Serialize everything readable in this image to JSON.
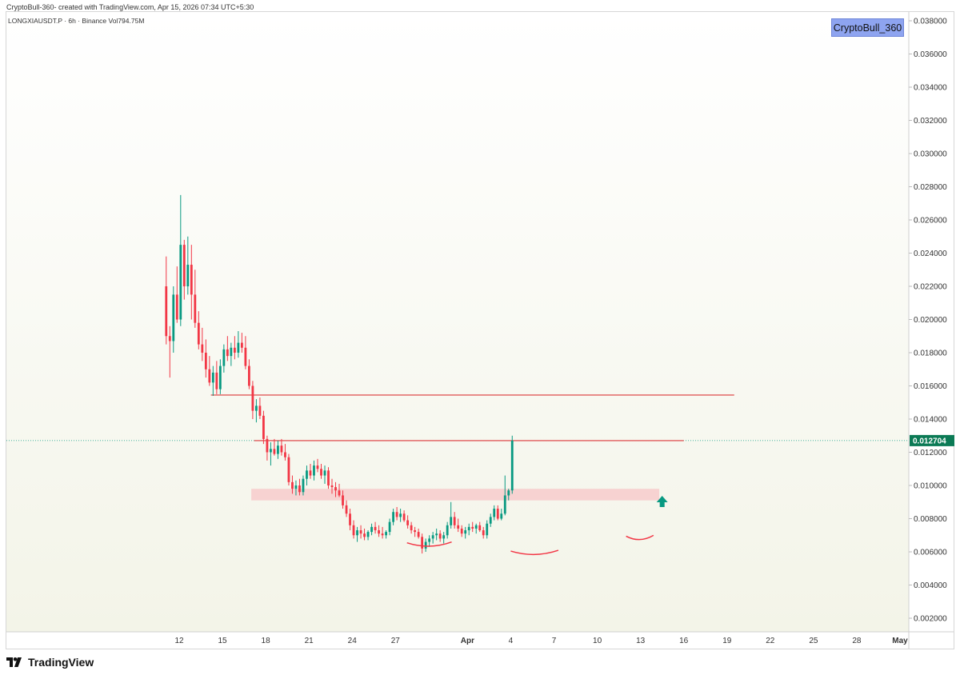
{
  "header": {
    "attribution": "CryptoBull-360- created with TradingView.com, Apr 15, 2026 07:34 UTC+5:30",
    "symbol_line": "LONGXIAUSDT.P · 6h · Binance  Vol794.75M",
    "watermark": "CryptoBull_360"
  },
  "footer": {
    "brand": "TradingView"
  },
  "colors": {
    "up": "#089981",
    "down": "#f23645",
    "level_line": "#e05a5a",
    "zone_fill": "#f7c9c9",
    "price_tag": "#0b7a55",
    "bg_top": "#ffffff",
    "bg_bottom": "#f3f4e8"
  },
  "chart_data": {
    "type": "candlestick",
    "symbol": "LONGXIAUSDT.P",
    "timeframe": "6h",
    "exchange": "Binance",
    "ylim": [
      0.001,
      0.0385
    ],
    "y_ticks": [
      "0.002000",
      "0.004000",
      "0.006000",
      "0.008000",
      "0.010000",
      "0.012000",
      "0.014000",
      "0.016000",
      "0.018000",
      "0.020000",
      "0.022000",
      "0.024000",
      "0.026000",
      "0.028000",
      "0.030000",
      "0.032000",
      "0.034000",
      "0.036000",
      "0.038000"
    ],
    "x_ticks": [
      {
        "label": "12",
        "day": 12
      },
      {
        "label": "15",
        "day": 15
      },
      {
        "label": "18",
        "day": 18
      },
      {
        "label": "21",
        "day": 21
      },
      {
        "label": "24",
        "day": 24
      },
      {
        "label": "27",
        "day": 27
      },
      {
        "label": "Apr",
        "day": 32
      },
      {
        "label": "4",
        "day": 35
      },
      {
        "label": "7",
        "day": 38
      },
      {
        "label": "10",
        "day": 41
      },
      {
        "label": "13",
        "day": 44
      },
      {
        "label": "16",
        "day": 47
      },
      {
        "label": "19",
        "day": 50
      },
      {
        "label": "22",
        "day": 53
      },
      {
        "label": "25",
        "day": 56
      },
      {
        "label": "28",
        "day": 59
      },
      {
        "label": "May",
        "day": 62
      }
    ],
    "current_price": "0.012704",
    "levels": [
      {
        "price": 0.01545,
        "from_day": 14.2,
        "to_day": 50.5,
        "label": "resistance"
      },
      {
        "price": 0.0127,
        "from_day": 17.2,
        "to_day": 47.0,
        "label": "resistance"
      }
    ],
    "zones": [
      {
        "low": 0.0091,
        "high": 0.0098,
        "from_day": 17.0,
        "to_day": 45.3
      }
    ],
    "arcs": [
      {
        "from_day": 27.8,
        "to_day": 30.9,
        "price": 0.0064
      },
      {
        "from_day": 35.0,
        "to_day": 38.3,
        "price": 0.0059
      },
      {
        "from_day": 43.0,
        "to_day": 44.9,
        "price": 0.0068
      }
    ],
    "arrow": {
      "day": 45.5,
      "price": 0.0087
    },
    "ohlc_start_day": 11.1,
    "ohlc_step_days": 0.25,
    "ohlc": [
      [
        0.022,
        0.0238,
        0.0185,
        0.019
      ],
      [
        0.019,
        0.0196,
        0.0165,
        0.0187
      ],
      [
        0.0187,
        0.022,
        0.018,
        0.0215
      ],
      [
        0.0215,
        0.0232,
        0.0198,
        0.02
      ],
      [
        0.02,
        0.0275,
        0.0196,
        0.0245
      ],
      [
        0.0245,
        0.0248,
        0.0212,
        0.022
      ],
      [
        0.022,
        0.025,
        0.0215,
        0.0233
      ],
      [
        0.0233,
        0.0245,
        0.02,
        0.0215
      ],
      [
        0.0215,
        0.023,
        0.0195,
        0.0198
      ],
      [
        0.0198,
        0.0205,
        0.0182,
        0.0185
      ],
      [
        0.0185,
        0.0195,
        0.0175,
        0.018
      ],
      [
        0.018,
        0.0188,
        0.0165,
        0.017
      ],
      [
        0.017,
        0.0178,
        0.016,
        0.0162
      ],
      [
        0.0162,
        0.0172,
        0.0154,
        0.0168
      ],
      [
        0.0168,
        0.0175,
        0.0155,
        0.0158
      ],
      [
        0.0158,
        0.0176,
        0.0155,
        0.0172
      ],
      [
        0.0172,
        0.0185,
        0.0168,
        0.0182
      ],
      [
        0.0182,
        0.019,
        0.0175,
        0.0178
      ],
      [
        0.0178,
        0.0186,
        0.0172,
        0.0183
      ],
      [
        0.0183,
        0.019,
        0.0176,
        0.018
      ],
      [
        0.018,
        0.0193,
        0.0177,
        0.0186
      ],
      [
        0.0186,
        0.0192,
        0.018,
        0.0183
      ],
      [
        0.0183,
        0.019,
        0.017,
        0.0172
      ],
      [
        0.0172,
        0.0176,
        0.0158,
        0.016
      ],
      [
        0.016,
        0.0163,
        0.014,
        0.0145
      ],
      [
        0.0145,
        0.0152,
        0.0138,
        0.0148
      ],
      [
        0.0148,
        0.0153,
        0.014,
        0.0142
      ],
      [
        0.0142,
        0.0145,
        0.0125,
        0.0128
      ],
      [
        0.0128,
        0.013,
        0.0115,
        0.012
      ],
      [
        0.012,
        0.0126,
        0.0112,
        0.0122
      ],
      [
        0.0122,
        0.0128,
        0.0118,
        0.0119
      ],
      [
        0.0119,
        0.0127,
        0.0116,
        0.0124
      ],
      [
        0.0124,
        0.0128,
        0.0118,
        0.012
      ],
      [
        0.012,
        0.0125,
        0.0115,
        0.0117
      ],
      [
        0.0117,
        0.0119,
        0.01,
        0.0102
      ],
      [
        0.0102,
        0.0106,
        0.0095,
        0.0098
      ],
      [
        0.0098,
        0.0103,
        0.0094,
        0.01
      ],
      [
        0.01,
        0.0104,
        0.0094,
        0.0096
      ],
      [
        0.0096,
        0.0106,
        0.0094,
        0.0104
      ],
      [
        0.0104,
        0.0112,
        0.01,
        0.0109
      ],
      [
        0.0109,
        0.0113,
        0.0104,
        0.0106
      ],
      [
        0.0106,
        0.0115,
        0.0103,
        0.0112
      ],
      [
        0.0112,
        0.0116,
        0.0108,
        0.011
      ],
      [
        0.011,
        0.0113,
        0.0104,
        0.0106
      ],
      [
        0.0106,
        0.0112,
        0.0101,
        0.0109
      ],
      [
        0.0109,
        0.0111,
        0.0098,
        0.01
      ],
      [
        0.01,
        0.0104,
        0.0095,
        0.0099
      ],
      [
        0.0099,
        0.0102,
        0.0093,
        0.0097
      ],
      [
        0.0097,
        0.0101,
        0.0093,
        0.0094
      ],
      [
        0.0094,
        0.0097,
        0.0086,
        0.0088
      ],
      [
        0.0088,
        0.0091,
        0.0081,
        0.0083
      ],
      [
        0.0083,
        0.0086,
        0.0073,
        0.0076
      ],
      [
        0.0076,
        0.0079,
        0.0068,
        0.007
      ],
      [
        0.007,
        0.0075,
        0.0066,
        0.0073
      ],
      [
        0.0073,
        0.0076,
        0.0068,
        0.0071
      ],
      [
        0.0071,
        0.0074,
        0.0067,
        0.0069
      ],
      [
        0.0069,
        0.0073,
        0.0067,
        0.0072
      ],
      [
        0.0072,
        0.0077,
        0.007,
        0.0075
      ],
      [
        0.0075,
        0.0078,
        0.0071,
        0.0073
      ],
      [
        0.0073,
        0.0076,
        0.0069,
        0.0071
      ],
      [
        0.0071,
        0.0075,
        0.0068,
        0.007
      ],
      [
        0.007,
        0.0073,
        0.0068,
        0.0072
      ],
      [
        0.0072,
        0.008,
        0.007,
        0.0078
      ],
      [
        0.0078,
        0.0086,
        0.0076,
        0.0084
      ],
      [
        0.0084,
        0.0087,
        0.0079,
        0.0081
      ],
      [
        0.0081,
        0.0086,
        0.0078,
        0.0083
      ],
      [
        0.0083,
        0.0085,
        0.0078,
        0.0079
      ],
      [
        0.0079,
        0.0082,
        0.0074,
        0.0076
      ],
      [
        0.0076,
        0.0078,
        0.0071,
        0.0073
      ],
      [
        0.0073,
        0.0075,
        0.0069,
        0.0072
      ],
      [
        0.0072,
        0.0074,
        0.0068,
        0.0069
      ],
      [
        0.0069,
        0.0071,
        0.0059,
        0.0062
      ],
      [
        0.0062,
        0.0068,
        0.006,
        0.0066
      ],
      [
        0.0066,
        0.007,
        0.0063,
        0.0068
      ],
      [
        0.0068,
        0.0072,
        0.0065,
        0.007
      ],
      [
        0.007,
        0.0074,
        0.0067,
        0.0071
      ],
      [
        0.0071,
        0.0073,
        0.0066,
        0.0068
      ],
      [
        0.0068,
        0.0072,
        0.0065,
        0.007
      ],
      [
        0.007,
        0.0078,
        0.0068,
        0.0076
      ],
      [
        0.0076,
        0.009,
        0.0074,
        0.0081
      ],
      [
        0.0081,
        0.0084,
        0.0074,
        0.0076
      ],
      [
        0.0076,
        0.008,
        0.0072,
        0.0074
      ],
      [
        0.0074,
        0.0076,
        0.0069,
        0.0071
      ],
      [
        0.0071,
        0.0075,
        0.0068,
        0.0073
      ],
      [
        0.0073,
        0.0077,
        0.007,
        0.0075
      ],
      [
        0.0075,
        0.0078,
        0.0072,
        0.0074
      ],
      [
        0.0074,
        0.0077,
        0.0071,
        0.0076
      ],
      [
        0.0076,
        0.0078,
        0.0072,
        0.0073
      ],
      [
        0.0073,
        0.0075,
        0.0068,
        0.007
      ],
      [
        0.007,
        0.0079,
        0.0068,
        0.0077
      ],
      [
        0.0077,
        0.0083,
        0.0075,
        0.0081
      ],
      [
        0.0081,
        0.0088,
        0.0079,
        0.0086
      ],
      [
        0.0086,
        0.0088,
        0.0079,
        0.008
      ],
      [
        0.008,
        0.0086,
        0.0079,
        0.0083
      ],
      [
        0.0083,
        0.0106,
        0.0082,
        0.0094
      ],
      [
        0.0094,
        0.0098,
        0.0091,
        0.0097
      ],
      [
        0.0097,
        0.013,
        0.0095,
        0.0127
      ]
    ]
  }
}
